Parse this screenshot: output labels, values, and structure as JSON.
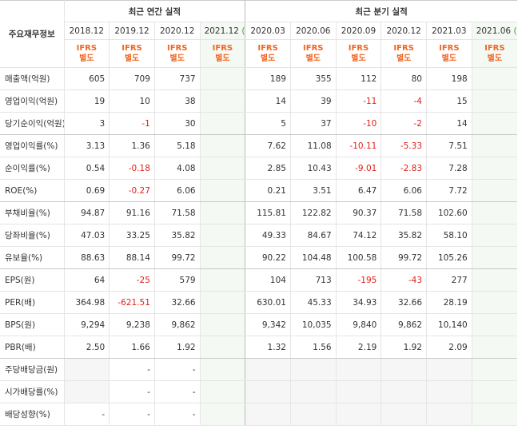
{
  "header": {
    "corner": "주요재무정보",
    "annual": "최근 연간 실적",
    "quarterly": "최근 분기 실적"
  },
  "columns": [
    {
      "period": "2018.12",
      "basis": [
        "IFRS",
        "별도"
      ]
    },
    {
      "period": "2019.12",
      "basis": [
        "IFRS",
        "별도"
      ]
    },
    {
      "period": "2020.12",
      "basis": [
        "IFRS",
        "별도"
      ]
    },
    {
      "period": "2021.12",
      "estimate": "(E)",
      "basis": [
        "IFRS",
        "별도"
      ]
    },
    {
      "period": "2020.03",
      "basis": [
        "IFRS",
        "별도"
      ]
    },
    {
      "period": "2020.06",
      "basis": [
        "IFRS",
        "별도"
      ]
    },
    {
      "period": "2020.09",
      "basis": [
        "IFRS",
        "별도"
      ]
    },
    {
      "period": "2020.12",
      "basis": [
        "IFRS",
        "별도"
      ]
    },
    {
      "period": "2021.03",
      "basis": [
        "IFRS",
        "별도"
      ]
    },
    {
      "period": "2021.06",
      "estimate": "(E)",
      "basis": [
        "IFRS",
        "별도"
      ]
    }
  ],
  "table": {
    "rows": [
      {
        "label": "매출액(억원)",
        "cells": [
          "605",
          "709",
          "737",
          null,
          "189",
          "355",
          "112",
          "80",
          "198",
          null
        ]
      },
      {
        "label": "영업이익(억원)",
        "cells": [
          "19",
          "10",
          "38",
          null,
          "14",
          "39",
          "-11",
          "-4",
          "15",
          null
        ]
      },
      {
        "label": "당기순이익(억원)",
        "cells": [
          "3",
          "-1",
          "30",
          null,
          "5",
          "37",
          "-10",
          "-2",
          "14",
          null
        ]
      },
      {
        "label": "영업이익률(%)",
        "cells": [
          "3.13",
          "1.36",
          "5.18",
          null,
          "7.62",
          "11.08",
          "-10.11",
          "-5.33",
          "7.51",
          null
        ]
      },
      {
        "label": "순이익률(%)",
        "cells": [
          "0.54",
          "-0.18",
          "4.08",
          null,
          "2.85",
          "10.43",
          "-9.01",
          "-2.83",
          "7.28",
          null
        ]
      },
      {
        "label": "ROE(%)",
        "cells": [
          "0.69",
          "-0.27",
          "6.06",
          null,
          "0.21",
          "3.51",
          "6.47",
          "6.06",
          "7.72",
          null
        ]
      },
      {
        "label": "부채비율(%)",
        "cells": [
          "94.87",
          "91.16",
          "71.58",
          null,
          "115.81",
          "122.82",
          "90.37",
          "71.58",
          "102.60",
          null
        ]
      },
      {
        "label": "당좌비율(%)",
        "cells": [
          "47.03",
          "33.25",
          "35.82",
          null,
          "49.33",
          "84.67",
          "74.12",
          "35.82",
          "58.10",
          null
        ]
      },
      {
        "label": "유보율(%)",
        "cells": [
          "88.63",
          "88.14",
          "99.72",
          null,
          "90.22",
          "104.48",
          "100.58",
          "99.72",
          "105.26",
          null
        ]
      },
      {
        "label": "EPS(원)",
        "cells": [
          "64",
          "-25",
          "579",
          null,
          "104",
          "713",
          "-195",
          "-43",
          "277",
          null
        ]
      },
      {
        "label": "PER(배)",
        "cells": [
          "364.98",
          "-621.51",
          "32.66",
          null,
          "630.01",
          "45.33",
          "34.93",
          "32.66",
          "28.19",
          null
        ]
      },
      {
        "label": "BPS(원)",
        "cells": [
          "9,294",
          "9,238",
          "9,862",
          null,
          "9,342",
          "10,035",
          "9,840",
          "9,862",
          "10,140",
          null
        ]
      },
      {
        "label": "PBR(배)",
        "cells": [
          "2.50",
          "1.66",
          "1.92",
          null,
          "1.32",
          "1.56",
          "2.19",
          "1.92",
          "2.09",
          null
        ]
      },
      {
        "label": "주당배당금(원)",
        "cells": [
          null,
          "-",
          "-",
          null,
          null,
          null,
          null,
          null,
          null,
          null
        ]
      },
      {
        "label": "시가배당률(%)",
        "cells": [
          null,
          "-",
          "-",
          null,
          null,
          null,
          null,
          null,
          null,
          null
        ]
      },
      {
        "label": "배당성향(%)",
        "cells": [
          "-",
          "-",
          "-",
          null,
          null,
          null,
          null,
          null,
          null,
          null
        ]
      }
    ]
  }
}
